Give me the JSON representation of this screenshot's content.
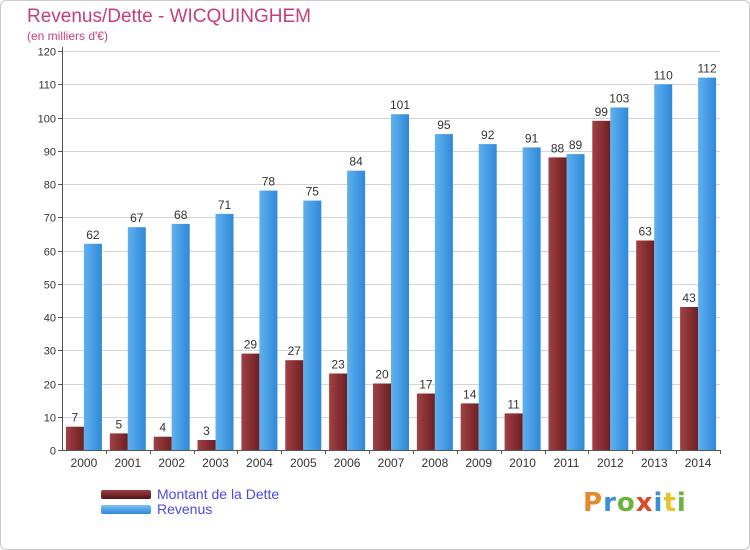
{
  "header": {
    "title": "Revenus/Dette - WICQUINGHEM",
    "subtitle": "(en milliers d'€)"
  },
  "legend": {
    "items": [
      "Montant de la Dette",
      "Revenus"
    ]
  },
  "logo": {
    "text": "Proxiti",
    "letter_colors": [
      "#e8882a",
      "#3a8fd6",
      "#6ab23c",
      "#d94b2b",
      "#3a8fd6",
      "#e8c227",
      "#6ab23c"
    ]
  },
  "colors": {
    "dette": "#6e1f22",
    "dette_light": "#a04145",
    "revenus": "#2f89d8",
    "revenus_light": "#5fb0ee",
    "title": "#c83c78",
    "axis_text": "#333333",
    "grid": "#d4d4d4"
  },
  "chart_data": {
    "type": "bar",
    "title": "Revenus/Dette - WICQUINGHEM",
    "subtitle": "(en milliers d'€)",
    "xlabel": "",
    "ylabel": "",
    "ylim": [
      0,
      120
    ],
    "yticks": [
      0,
      10,
      20,
      30,
      40,
      50,
      60,
      70,
      80,
      90,
      100,
      110,
      120
    ],
    "grid": true,
    "legend_position": "bottom-left",
    "categories": [
      "2000",
      "2001",
      "2002",
      "2003",
      "2004",
      "2005",
      "2006",
      "2007",
      "2008",
      "2009",
      "2010",
      "2011",
      "2012",
      "2013",
      "2014"
    ],
    "series": [
      {
        "name": "Montant de la Dette",
        "values": [
          7,
          5,
          4,
          3,
          29,
          27,
          23,
          20,
          17,
          14,
          11,
          88,
          99,
          63,
          43
        ]
      },
      {
        "name": "Revenus",
        "values": [
          62,
          67,
          68,
          71,
          78,
          75,
          84,
          101,
          95,
          92,
          91,
          89,
          103,
          110,
          112
        ]
      }
    ]
  }
}
